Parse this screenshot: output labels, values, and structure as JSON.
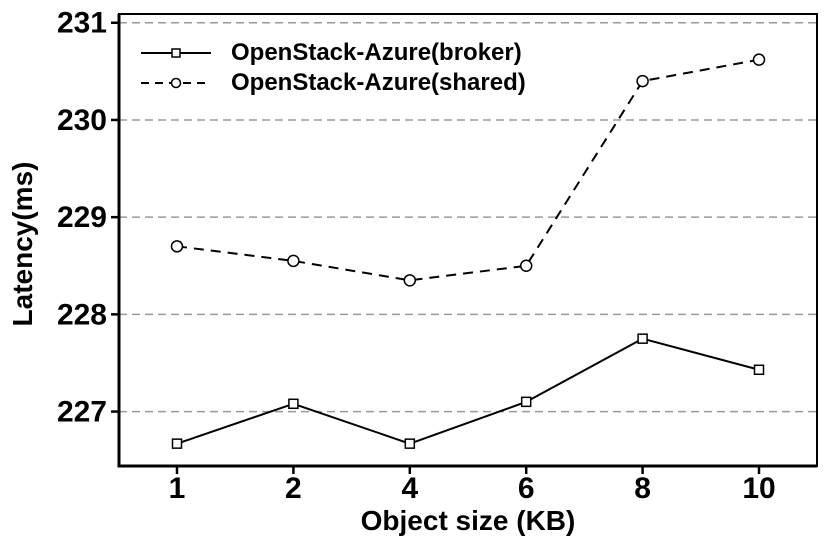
{
  "figure": {
    "background_color": "#ffffff",
    "axis_color": "#000000",
    "grid_color": "#9a9a9a",
    "marker_fill": "#ffffff"
  },
  "chart_data": {
    "type": "line",
    "title": "",
    "xlabel": "Object size (KB)",
    "ylabel": "Latency(ms)",
    "categories": [
      1,
      2,
      4,
      6,
      8,
      10
    ],
    "xticklabels": [
      "1",
      "2",
      "4",
      "6",
      "8",
      "10"
    ],
    "yticks": [
      227,
      228,
      229,
      230,
      231
    ],
    "yticklabels": [
      "227",
      "228",
      "229",
      "230",
      "231"
    ],
    "ylim": [
      226.44,
      231.09
    ],
    "grid": true,
    "grid_style": "dashed",
    "legend_position": "top-left-inside",
    "series": [
      {
        "name": "OpenStack-Azure(broker)",
        "color": "#000000",
        "line_style": "solid",
        "marker": "square",
        "values": [
          226.67,
          227.08,
          226.67,
          227.1,
          227.75,
          227.43
        ]
      },
      {
        "name": "OpenStack-Azure(shared)",
        "color": "#000000",
        "line_style": "dashed",
        "marker": "circle",
        "values": [
          228.7,
          228.55,
          228.35,
          228.5,
          230.4,
          230.62
        ]
      }
    ]
  }
}
